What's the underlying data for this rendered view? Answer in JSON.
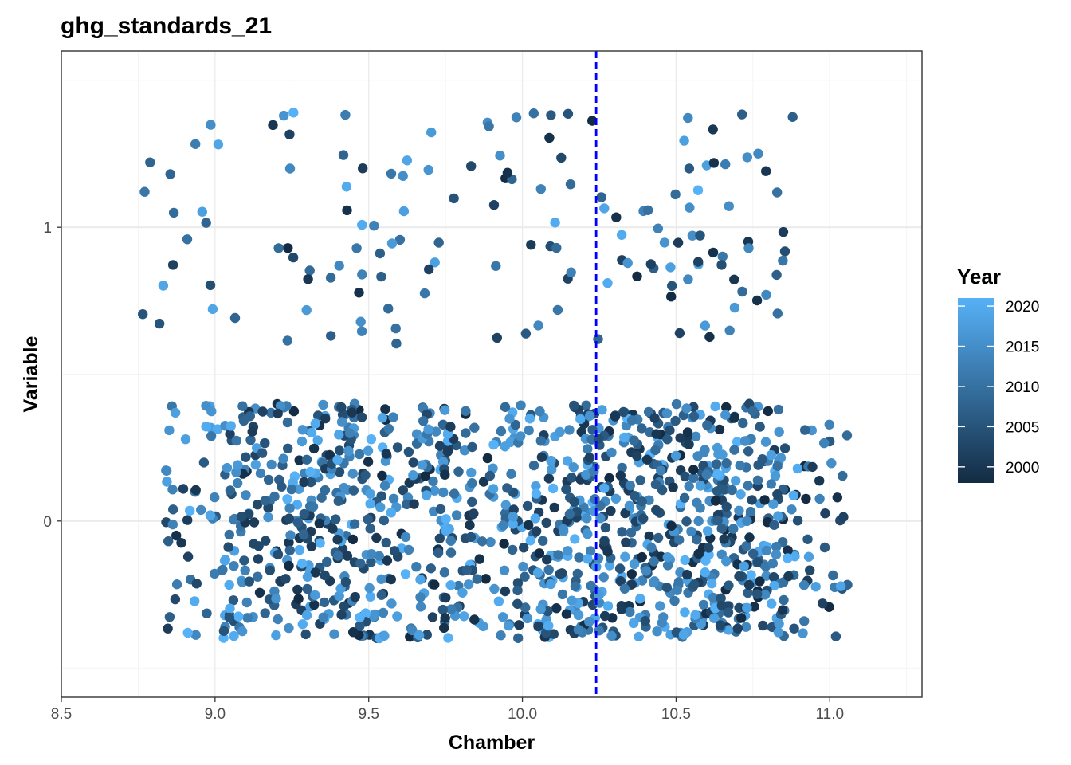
{
  "chart_data": {
    "type": "scatter",
    "title": "ghg_standards_21",
    "xlabel": "Chamber",
    "ylabel": "Variable",
    "xlim": [
      8.5,
      11.3
    ],
    "ylim": [
      -0.6,
      1.6
    ],
    "x_ticks": [
      8.5,
      9.0,
      9.5,
      10.0,
      10.5,
      11.0
    ],
    "x_tick_labels": [
      "8.5",
      "9.0",
      "9.5",
      "10.0",
      "10.5",
      "11.0"
    ],
    "y_ticks": [
      0,
      1
    ],
    "y_tick_labels": [
      "0",
      "1"
    ],
    "grid": true,
    "vline": {
      "x": 10.24,
      "color": "#0000ff",
      "style": "dashed"
    },
    "legend": {
      "title": "Year",
      "position": "right",
      "type": "colorbar",
      "range": [
        1998,
        2021
      ],
      "labels": [
        "2020",
        "2015",
        "2010",
        "2005",
        "2000"
      ],
      "label_values": [
        2020,
        2015,
        2010,
        2005,
        2000
      ],
      "color_low": "#132b43",
      "color_high": "#56b1f7"
    },
    "jitter": {
      "x_half_width": 0.26,
      "y_half_width": 0.4
    },
    "series": [
      {
        "values_y": [
          0,
          1
        ],
        "chambers": [
          9,
          10,
          11
        ],
        "note_counts": []
      }
    ],
    "points_seed": 21,
    "n_points_y0": 1250,
    "n_points_y1": 150,
    "chambers_y1": [
      8.9,
      9.3,
      9.6,
      10.0,
      10.4,
      10.7
    ],
    "chambers_y0": [
      9.1,
      9.3,
      9.6,
      9.9,
      10.2,
      10.4,
      10.6,
      10.8
    ]
  }
}
